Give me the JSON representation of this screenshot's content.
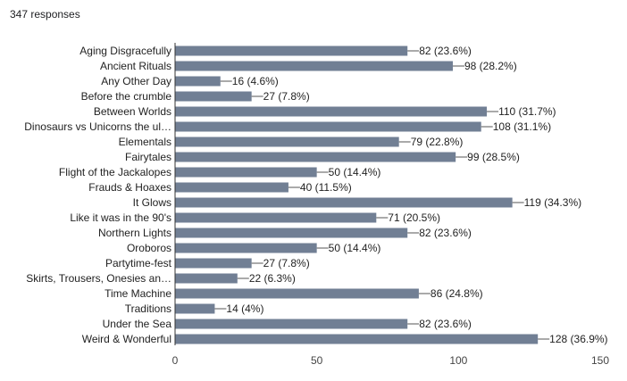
{
  "header": {
    "responses_label": "347 responses"
  },
  "colors": {
    "bar": "#717f94",
    "axis": "#333333",
    "leader": "#555555"
  },
  "chart_data": {
    "type": "bar",
    "orientation": "horizontal",
    "title": "",
    "xlabel": "",
    "ylabel": "",
    "xlim": [
      0,
      150
    ],
    "xticks": [
      0,
      50,
      100,
      150
    ],
    "grid": false,
    "categories": [
      "Aging Disgracefully",
      "Ancient Rituals",
      "Any Other Day",
      "Before the crumble",
      "Between Worlds",
      "Dinosaurs vs Unicorns the ul…",
      "Elementals",
      "Fairytales",
      "Flight of the Jackalopes",
      "Frauds & Hoaxes",
      "It Glows",
      "Like it was in the 90's",
      "Northern Lights",
      "Oroboros",
      "Partytime-fest",
      "Skirts, Trousers, Onesies an…",
      "Time Machine",
      "Traditions",
      "Under the Sea",
      "Weird & Wonderful"
    ],
    "values": [
      82,
      98,
      16,
      27,
      110,
      108,
      79,
      99,
      50,
      40,
      119,
      71,
      82,
      50,
      27,
      22,
      86,
      14,
      82,
      128
    ],
    "value_labels": [
      "82 (23.6%)",
      "98 (28.2%)",
      "16 (4.6%)",
      "27 (7.8%)",
      "110 (31.7%)",
      "108 (31.1%)",
      "79 (22.8%)",
      "99 (28.5%)",
      "50 (14.4%)",
      "40 (11.5%)",
      "119 (34.3%)",
      "71 (20.5%)",
      "82 (23.6%)",
      "50 (14.4%)",
      "27 (7.8%)",
      "22 (6.3%)",
      "86 (24.8%)",
      "14 (4%)",
      "82 (23.6%)",
      "128 (36.9%)"
    ]
  }
}
